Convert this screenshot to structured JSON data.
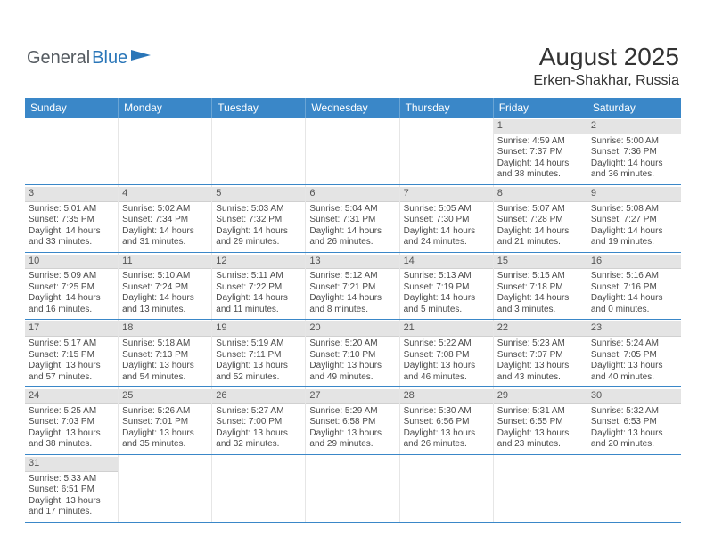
{
  "logo": {
    "text1": "General",
    "text2": "Blue"
  },
  "title": "August 2025",
  "location": "Erken-Shakhar, Russia",
  "colors": {
    "header_bg": "#3a87c8",
    "header_text": "#ffffff",
    "daynum_bg": "#e4e4e4",
    "row_border": "#3a87c8",
    "text": "#4a4a4a"
  },
  "dayNames": [
    "Sunday",
    "Monday",
    "Tuesday",
    "Wednesday",
    "Thursday",
    "Friday",
    "Saturday"
  ],
  "weeks": [
    [
      null,
      null,
      null,
      null,
      null,
      {
        "n": "1",
        "sr": "Sunrise: 4:59 AM",
        "ss": "Sunset: 7:37 PM",
        "d1": "Daylight: 14 hours",
        "d2": "and 38 minutes."
      },
      {
        "n": "2",
        "sr": "Sunrise: 5:00 AM",
        "ss": "Sunset: 7:36 PM",
        "d1": "Daylight: 14 hours",
        "d2": "and 36 minutes."
      }
    ],
    [
      {
        "n": "3",
        "sr": "Sunrise: 5:01 AM",
        "ss": "Sunset: 7:35 PM",
        "d1": "Daylight: 14 hours",
        "d2": "and 33 minutes."
      },
      {
        "n": "4",
        "sr": "Sunrise: 5:02 AM",
        "ss": "Sunset: 7:34 PM",
        "d1": "Daylight: 14 hours",
        "d2": "and 31 minutes."
      },
      {
        "n": "5",
        "sr": "Sunrise: 5:03 AM",
        "ss": "Sunset: 7:32 PM",
        "d1": "Daylight: 14 hours",
        "d2": "and 29 minutes."
      },
      {
        "n": "6",
        "sr": "Sunrise: 5:04 AM",
        "ss": "Sunset: 7:31 PM",
        "d1": "Daylight: 14 hours",
        "d2": "and 26 minutes."
      },
      {
        "n": "7",
        "sr": "Sunrise: 5:05 AM",
        "ss": "Sunset: 7:30 PM",
        "d1": "Daylight: 14 hours",
        "d2": "and 24 minutes."
      },
      {
        "n": "8",
        "sr": "Sunrise: 5:07 AM",
        "ss": "Sunset: 7:28 PM",
        "d1": "Daylight: 14 hours",
        "d2": "and 21 minutes."
      },
      {
        "n": "9",
        "sr": "Sunrise: 5:08 AM",
        "ss": "Sunset: 7:27 PM",
        "d1": "Daylight: 14 hours",
        "d2": "and 19 minutes."
      }
    ],
    [
      {
        "n": "10",
        "sr": "Sunrise: 5:09 AM",
        "ss": "Sunset: 7:25 PM",
        "d1": "Daylight: 14 hours",
        "d2": "and 16 minutes."
      },
      {
        "n": "11",
        "sr": "Sunrise: 5:10 AM",
        "ss": "Sunset: 7:24 PM",
        "d1": "Daylight: 14 hours",
        "d2": "and 13 minutes."
      },
      {
        "n": "12",
        "sr": "Sunrise: 5:11 AM",
        "ss": "Sunset: 7:22 PM",
        "d1": "Daylight: 14 hours",
        "d2": "and 11 minutes."
      },
      {
        "n": "13",
        "sr": "Sunrise: 5:12 AM",
        "ss": "Sunset: 7:21 PM",
        "d1": "Daylight: 14 hours",
        "d2": "and 8 minutes."
      },
      {
        "n": "14",
        "sr": "Sunrise: 5:13 AM",
        "ss": "Sunset: 7:19 PM",
        "d1": "Daylight: 14 hours",
        "d2": "and 5 minutes."
      },
      {
        "n": "15",
        "sr": "Sunrise: 5:15 AM",
        "ss": "Sunset: 7:18 PM",
        "d1": "Daylight: 14 hours",
        "d2": "and 3 minutes."
      },
      {
        "n": "16",
        "sr": "Sunrise: 5:16 AM",
        "ss": "Sunset: 7:16 PM",
        "d1": "Daylight: 14 hours",
        "d2": "and 0 minutes."
      }
    ],
    [
      {
        "n": "17",
        "sr": "Sunrise: 5:17 AM",
        "ss": "Sunset: 7:15 PM",
        "d1": "Daylight: 13 hours",
        "d2": "and 57 minutes."
      },
      {
        "n": "18",
        "sr": "Sunrise: 5:18 AM",
        "ss": "Sunset: 7:13 PM",
        "d1": "Daylight: 13 hours",
        "d2": "and 54 minutes."
      },
      {
        "n": "19",
        "sr": "Sunrise: 5:19 AM",
        "ss": "Sunset: 7:11 PM",
        "d1": "Daylight: 13 hours",
        "d2": "and 52 minutes."
      },
      {
        "n": "20",
        "sr": "Sunrise: 5:20 AM",
        "ss": "Sunset: 7:10 PM",
        "d1": "Daylight: 13 hours",
        "d2": "and 49 minutes."
      },
      {
        "n": "21",
        "sr": "Sunrise: 5:22 AM",
        "ss": "Sunset: 7:08 PM",
        "d1": "Daylight: 13 hours",
        "d2": "and 46 minutes."
      },
      {
        "n": "22",
        "sr": "Sunrise: 5:23 AM",
        "ss": "Sunset: 7:07 PM",
        "d1": "Daylight: 13 hours",
        "d2": "and 43 minutes."
      },
      {
        "n": "23",
        "sr": "Sunrise: 5:24 AM",
        "ss": "Sunset: 7:05 PM",
        "d1": "Daylight: 13 hours",
        "d2": "and 40 minutes."
      }
    ],
    [
      {
        "n": "24",
        "sr": "Sunrise: 5:25 AM",
        "ss": "Sunset: 7:03 PM",
        "d1": "Daylight: 13 hours",
        "d2": "and 38 minutes."
      },
      {
        "n": "25",
        "sr": "Sunrise: 5:26 AM",
        "ss": "Sunset: 7:01 PM",
        "d1": "Daylight: 13 hours",
        "d2": "and 35 minutes."
      },
      {
        "n": "26",
        "sr": "Sunrise: 5:27 AM",
        "ss": "Sunset: 7:00 PM",
        "d1": "Daylight: 13 hours",
        "d2": "and 32 minutes."
      },
      {
        "n": "27",
        "sr": "Sunrise: 5:29 AM",
        "ss": "Sunset: 6:58 PM",
        "d1": "Daylight: 13 hours",
        "d2": "and 29 minutes."
      },
      {
        "n": "28",
        "sr": "Sunrise: 5:30 AM",
        "ss": "Sunset: 6:56 PM",
        "d1": "Daylight: 13 hours",
        "d2": "and 26 minutes."
      },
      {
        "n": "29",
        "sr": "Sunrise: 5:31 AM",
        "ss": "Sunset: 6:55 PM",
        "d1": "Daylight: 13 hours",
        "d2": "and 23 minutes."
      },
      {
        "n": "30",
        "sr": "Sunrise: 5:32 AM",
        "ss": "Sunset: 6:53 PM",
        "d1": "Daylight: 13 hours",
        "d2": "and 20 minutes."
      }
    ],
    [
      {
        "n": "31",
        "sr": "Sunrise: 5:33 AM",
        "ss": "Sunset: 6:51 PM",
        "d1": "Daylight: 13 hours",
        "d2": "and 17 minutes."
      },
      null,
      null,
      null,
      null,
      null,
      null
    ]
  ]
}
